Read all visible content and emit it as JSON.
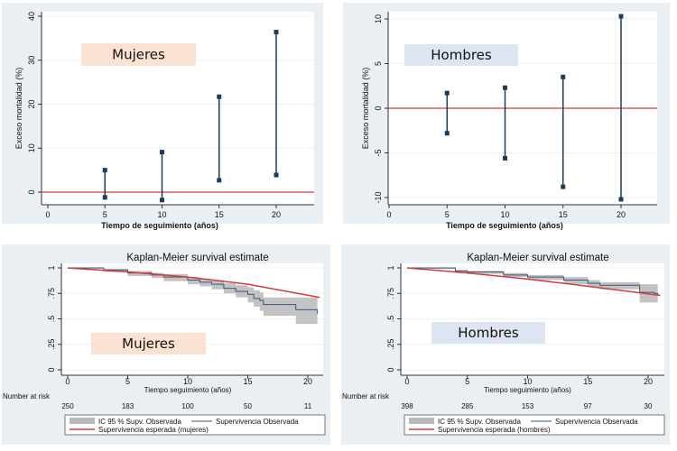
{
  "colors": {
    "panel_bg": "#eaeff4",
    "marker": "#1f3b5a",
    "reference": "#d43c3c",
    "ci_band": "#b8b8b8",
    "observed": "#3b5878",
    "mujeres_box": "#fbe2d2",
    "hombres_box": "#dde4f2"
  },
  "chart_data": [
    {
      "type": "errorbar",
      "id": "mujeres_excess",
      "label_box": "Mujeres",
      "ylabel": "Exceso mortalidad (%)",
      "xlabel": "Tiempo de seguimiento (años)",
      "xlim": [
        0,
        23
      ],
      "ylim": [
        -3,
        41
      ],
      "xticks": [
        "0",
        "5",
        "10",
        "15",
        "20"
      ],
      "yticks": [
        "0",
        "10",
        "20",
        "30",
        "40"
      ],
      "reference_line": 0,
      "x": [
        5,
        10,
        15,
        20
      ],
      "lower": [
        -1.2,
        -1.8,
        2.7,
        3.9
      ],
      "upper": [
        5.0,
        9.1,
        21.7,
        36.4
      ]
    },
    {
      "type": "errorbar",
      "id": "hombres_excess",
      "label_box": "Hombres",
      "ylabel": "Exceso mortalidad (%)",
      "xlabel": "Tiempo de seguimiento (años)",
      "xlim": [
        0,
        23
      ],
      "ylim": [
        -10.5,
        11
      ],
      "xticks": [
        "0",
        "5",
        "10",
        "15",
        "20"
      ],
      "yticks": [
        "-10",
        "-5",
        "0",
        "5",
        "10"
      ],
      "reference_line": 0,
      "x": [
        5,
        10,
        15,
        20
      ],
      "lower": [
        -2.8,
        -5.6,
        -8.8,
        -10.2
      ],
      "upper": [
        1.7,
        2.3,
        3.5,
        10.3
      ]
    },
    {
      "type": "line",
      "id": "mujeres_km",
      "title": "Kaplan-Meier survival estimate",
      "label_box": "Mujeres",
      "xlabel": "Tiempo seguimiento (años)",
      "xlim": [
        0,
        21
      ],
      "ylim": [
        0,
        1
      ],
      "xticks": [
        "0",
        "5",
        "10",
        "15",
        "20"
      ],
      "yticks": [
        "0",
        ".25",
        ".5",
        ".75",
        "1"
      ],
      "risk_label": "Number at risk",
      "risk_times": [
        0,
        5,
        10,
        15,
        20
      ],
      "risk_values": [
        "250",
        "183",
        "100",
        "50",
        "11"
      ],
      "legend": [
        "IC 95 % Supv. Observada",
        "Supervivencia Observada",
        "Supervivencia esperada (mujeres)"
      ],
      "observed": {
        "x": [
          0,
          3,
          5,
          7,
          8,
          10,
          11,
          12,
          13,
          14,
          15,
          15.5,
          16,
          16.3,
          19,
          19,
          20.8,
          20.8
        ],
        "y": [
          1,
          0.98,
          0.95,
          0.93,
          0.91,
          0.88,
          0.86,
          0.84,
          0.8,
          0.77,
          0.74,
          0.7,
          0.68,
          0.64,
          0.64,
          0.59,
          0.59,
          0.55
        ]
      },
      "ci_upper": {
        "x": [
          0,
          3,
          5,
          7,
          8,
          10,
          11,
          12,
          13,
          14,
          15,
          15.5,
          16,
          16.3,
          19,
          20.8
        ],
        "y": [
          1,
          0.99,
          0.97,
          0.95,
          0.94,
          0.91,
          0.89,
          0.88,
          0.85,
          0.83,
          0.81,
          0.78,
          0.76,
          0.71,
          0.71,
          0.71
        ]
      },
      "ci_lower": {
        "x": [
          0,
          3,
          5,
          7,
          8,
          10,
          11,
          12,
          13,
          14,
          15,
          15.5,
          16,
          16.3,
          19,
          20.8
        ],
        "y": [
          0.99,
          0.96,
          0.92,
          0.9,
          0.87,
          0.84,
          0.82,
          0.79,
          0.75,
          0.71,
          0.66,
          0.62,
          0.58,
          0.53,
          0.45,
          0.45
        ]
      },
      "expected": {
        "x": [
          0,
          5,
          10,
          15,
          21
        ],
        "y": [
          1,
          0.96,
          0.91,
          0.84,
          0.71
        ]
      }
    },
    {
      "type": "line",
      "id": "hombres_km",
      "title": "Kaplan-Meier survival estimate",
      "label_box": "Hombres",
      "xlabel": "Tiempo seguimiento (años)",
      "xlim": [
        0,
        21
      ],
      "ylim": [
        0,
        1
      ],
      "xticks": [
        "0",
        "5",
        "10",
        "15",
        "20"
      ],
      "yticks": [
        "0",
        ".25",
        ".5",
        ".75",
        "1"
      ],
      "risk_label": "Number at risk",
      "risk_times": [
        0,
        5,
        10,
        15,
        20
      ],
      "risk_values": [
        "398",
        "285",
        "153",
        "97",
        "30"
      ],
      "legend": [
        "IC 95 % Supv. Observada",
        "Supervivencia Observada",
        "Supervivencia esperada (hombres)"
      ],
      "observed": {
        "x": [
          0,
          4,
          5,
          8,
          10,
          13,
          15,
          16,
          19.3,
          19.3,
          20.5,
          20.8
        ],
        "y": [
          1,
          0.97,
          0.96,
          0.93,
          0.91,
          0.88,
          0.85,
          0.83,
          0.81,
          0.76,
          0.75,
          0.73
        ]
      },
      "ci_upper": {
        "x": [
          0,
          4,
          5,
          8,
          10,
          13,
          15,
          16,
          19.3,
          20.8
        ],
        "y": [
          1,
          0.98,
          0.97,
          0.95,
          0.93,
          0.91,
          0.88,
          0.86,
          0.84,
          0.82
        ]
      },
      "ci_lower": {
        "x": [
          0,
          4,
          5,
          8,
          10,
          13,
          15,
          16,
          19.3,
          20.8
        ],
        "y": [
          0.99,
          0.95,
          0.94,
          0.91,
          0.88,
          0.84,
          0.81,
          0.79,
          0.66,
          0.62
        ]
      },
      "expected": {
        "x": [
          0,
          5,
          10,
          15,
          21
        ],
        "y": [
          1,
          0.95,
          0.89,
          0.82,
          0.73
        ]
      }
    }
  ]
}
